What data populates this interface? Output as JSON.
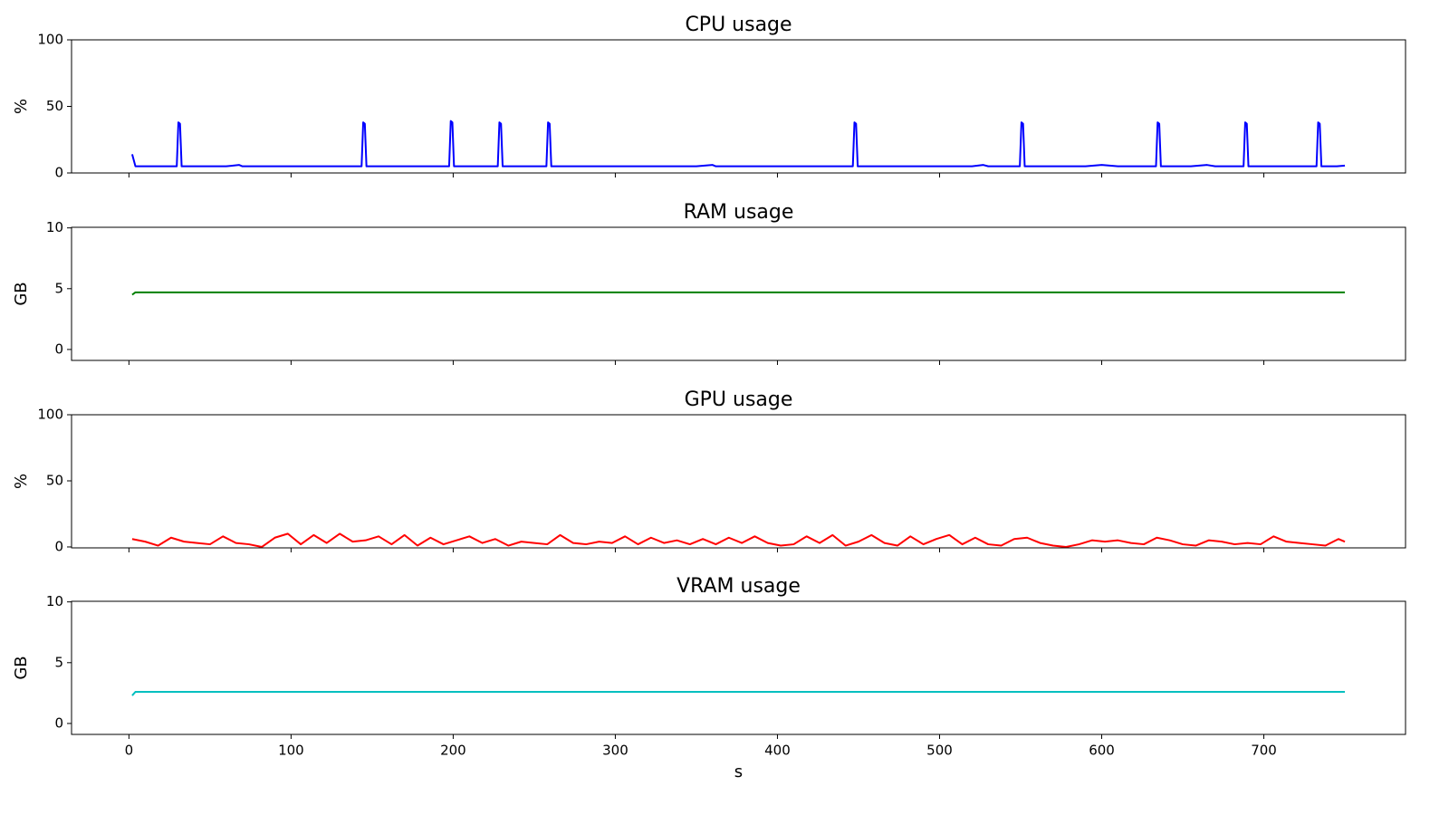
{
  "chart_data": [
    {
      "type": "line",
      "title": "CPU usage",
      "ylabel": "%",
      "ylim": [
        0,
        100
      ],
      "yticks": [
        0,
        50,
        100
      ],
      "xlim": [
        -35.4,
        787.4
      ],
      "color": "#0000ff",
      "x": [
        2,
        4,
        10,
        20,
        29.5,
        30.5,
        31.5,
        32.5,
        40,
        50,
        60,
        68,
        70,
        80,
        90,
        100,
        110,
        120,
        130,
        143.5,
        144.5,
        145.5,
        146.5,
        155,
        165,
        175,
        185,
        197.5,
        198.5,
        199.5,
        200.5,
        210,
        220,
        227.5,
        228.5,
        229.5,
        230.5,
        240,
        250,
        257.5,
        258.5,
        259.5,
        260.5,
        270,
        280,
        290,
        300,
        310,
        320,
        330,
        340,
        350,
        360,
        362,
        370,
        380,
        390,
        400,
        410,
        420,
        430,
        440,
        446.5,
        447.5,
        448.5,
        449.5,
        460,
        470,
        480,
        490,
        500,
        510,
        520,
        527,
        530,
        540,
        549.5,
        550.5,
        551.5,
        552.5,
        560,
        570,
        580,
        590,
        600,
        610,
        620,
        633.5,
        634.5,
        635.5,
        636.5,
        645,
        655,
        665,
        670,
        680,
        687.5,
        688.5,
        689.5,
        690.5,
        700,
        710,
        720,
        732.5,
        733.5,
        734.5,
        735.5,
        745,
        750
      ],
      "values": [
        14,
        5,
        5,
        5,
        5,
        38,
        37,
        5,
        5,
        5,
        5,
        6,
        5,
        5,
        5,
        5,
        5,
        5,
        5,
        5,
        38,
        37,
        5,
        5,
        5,
        5,
        5,
        5,
        39,
        38,
        5,
        5,
        5,
        5,
        38,
        37,
        5,
        5,
        5,
        5,
        38,
        37,
        5,
        5,
        5,
        5,
        5,
        5,
        5,
        5,
        5,
        5,
        6,
        5,
        5,
        5,
        5,
        5,
        5,
        5,
        5,
        5,
        5,
        38,
        37,
        5,
        5,
        5,
        5,
        5,
        5,
        5,
        5,
        6,
        5,
        5,
        5,
        38,
        37,
        5,
        5,
        5,
        5,
        5,
        6,
        5,
        5,
        5,
        38,
        37,
        5,
        5,
        5,
        6,
        5,
        5,
        5,
        38,
        37,
        5,
        5,
        5,
        5,
        5,
        38,
        37,
        5,
        5,
        5.5
      ]
    },
    {
      "type": "line",
      "title": "RAM usage",
      "ylabel": "GB",
      "ylim": [
        -0.9,
        10.05
      ],
      "yticks": [
        0,
        5,
        10
      ],
      "xlim": [
        -35.4,
        787.4
      ],
      "color": "#008000",
      "x": [
        2,
        4,
        750
      ],
      "values": [
        4.5,
        4.7,
        4.7
      ]
    },
    {
      "type": "line",
      "title": "GPU usage",
      "ylabel": "%",
      "ylim": [
        -0.7,
        100
      ],
      "yticks": [
        0,
        50,
        100
      ],
      "xlim": [
        -35.4,
        787.4
      ],
      "color": "#ff0000",
      "x": [
        2,
        10,
        18,
        26,
        34,
        42,
        50,
        58,
        66,
        74,
        82,
        90,
        98,
        106,
        114,
        122,
        130,
        138,
        146,
        154,
        162,
        170,
        178,
        186,
        194,
        202,
        210,
        218,
        226,
        234,
        242,
        250,
        258,
        266,
        274,
        282,
        290,
        298,
        306,
        314,
        322,
        330,
        338,
        346,
        354,
        362,
        370,
        378,
        386,
        394,
        402,
        410,
        418,
        426,
        434,
        442,
        450,
        458,
        466,
        474,
        482,
        490,
        498,
        506,
        514,
        522,
        530,
        538,
        546,
        554,
        562,
        570,
        578,
        586,
        594,
        602,
        610,
        618,
        626,
        634,
        642,
        650,
        658,
        666,
        674,
        682,
        690,
        698,
        706,
        714,
        722,
        730,
        738,
        746,
        750
      ],
      "values": [
        6,
        4,
        1,
        7,
        4,
        3,
        2,
        8,
        3,
        2,
        0,
        7,
        10,
        2,
        9,
        3,
        10,
        4,
        5,
        8,
        2,
        9,
        1,
        7,
        2,
        5,
        8,
        3,
        6,
        1,
        4,
        3,
        2,
        9,
        3,
        2,
        4,
        3,
        8,
        2,
        7,
        3,
        5,
        2,
        6,
        2,
        7,
        3,
        8,
        3,
        1,
        2,
        8,
        3,
        9,
        1,
        4,
        9,
        3,
        1,
        8,
        2,
        6,
        9,
        2,
        7,
        2,
        1,
        6,
        7,
        3,
        1,
        0,
        2,
        5,
        4,
        5,
        3,
        2,
        7,
        5,
        2,
        1,
        5,
        4,
        2,
        3,
        2,
        8,
        4,
        3,
        2,
        1,
        6,
        4
      ]
    },
    {
      "type": "line",
      "title": "VRAM usage",
      "ylabel": "GB",
      "ylim": [
        -0.9,
        10.05
      ],
      "yticks": [
        0,
        5,
        10
      ],
      "xlim": [
        -35.4,
        787.4
      ],
      "color": "#00bfbf",
      "x": [
        2,
        4,
        750
      ],
      "values": [
        2.3,
        2.6,
        2.6
      ],
      "xlabel": "s",
      "xticks": [
        0,
        100,
        200,
        300,
        400,
        500,
        600,
        700
      ]
    }
  ]
}
